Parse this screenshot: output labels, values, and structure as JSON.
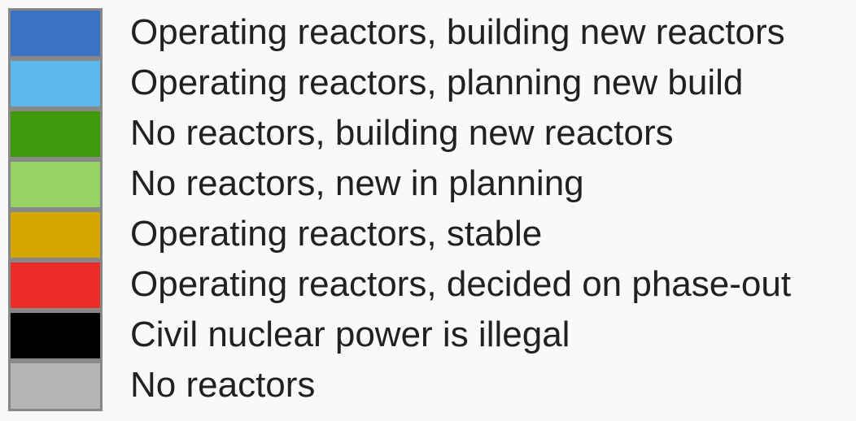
{
  "legend": {
    "items": [
      {
        "label": "Operating reactors, building new reactors",
        "color": "#3b73c4"
      },
      {
        "label": "Operating reactors, planning new build",
        "color": "#5bb8ee"
      },
      {
        "label": "No reactors, building new reactors",
        "color": "#3e9a0a"
      },
      {
        "label": "No reactors, new in planning",
        "color": "#97d267"
      },
      {
        "label": "Operating reactors, stable",
        "color": "#d6a600"
      },
      {
        "label": "Operating reactors, decided on phase-out",
        "color": "#ee2a2a"
      },
      {
        "label": "Civil nuclear power is illegal",
        "color": "#000000"
      },
      {
        "label": "No reactors",
        "color": "#b5b5b5"
      }
    ]
  }
}
